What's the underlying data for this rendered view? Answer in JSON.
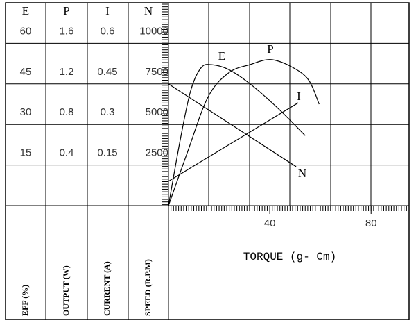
{
  "chart_data": {
    "type": "line",
    "x_label": "TORQUE (g- Cm)",
    "xlim": [
      0,
      95
    ],
    "xticks": [
      40,
      80
    ],
    "series": [
      {
        "name": "E",
        "axis_label": "EFF (%)",
        "color": "#000000",
        "ylim": [
          0,
          75
        ],
        "yticks": [
          60,
          45,
          30,
          15
        ],
        "x": [
          0,
          4.7,
          8.8,
          12.9,
          17.0,
          23.8,
          32.1,
          43.0,
          54.0
        ],
        "values": [
          0,
          24.6,
          42.6,
          51.0,
          52.1,
          50.3,
          45.1,
          36.2,
          25.9
        ]
      },
      {
        "name": "P",
        "axis_label": "OUTPUT (W)",
        "color": "#000000",
        "ylim": [
          0,
          2
        ],
        "yticks": [
          1.6,
          1.2,
          0.8,
          0.4
        ],
        "x": [
          0,
          7.4,
          15.6,
          23.8,
          32.1,
          40.3,
          48.5,
          55.3,
          59.5
        ],
        "values": [
          0,
          0.52,
          1.07,
          1.31,
          1.39,
          1.44,
          1.37,
          1.24,
          1.0
        ]
      },
      {
        "name": "I",
        "axis_label": "CURRENT (A)",
        "color": "#000000",
        "ylim": [
          0,
          0.75
        ],
        "yticks": [
          0.6,
          0.45,
          0.3,
          0.15
        ],
        "x": [
          0,
          51.2
        ],
        "values": [
          0.09,
          0.38
        ]
      },
      {
        "name": "N",
        "axis_label": "SPEED (R.P.M)",
        "color": "#000000",
        "ylim": [
          0,
          12500
        ],
        "yticks": [
          10000,
          7500,
          5000,
          2500
        ],
        "x": [
          0,
          50.4
        ],
        "values": [
          7500,
          2400
        ]
      }
    ]
  }
}
